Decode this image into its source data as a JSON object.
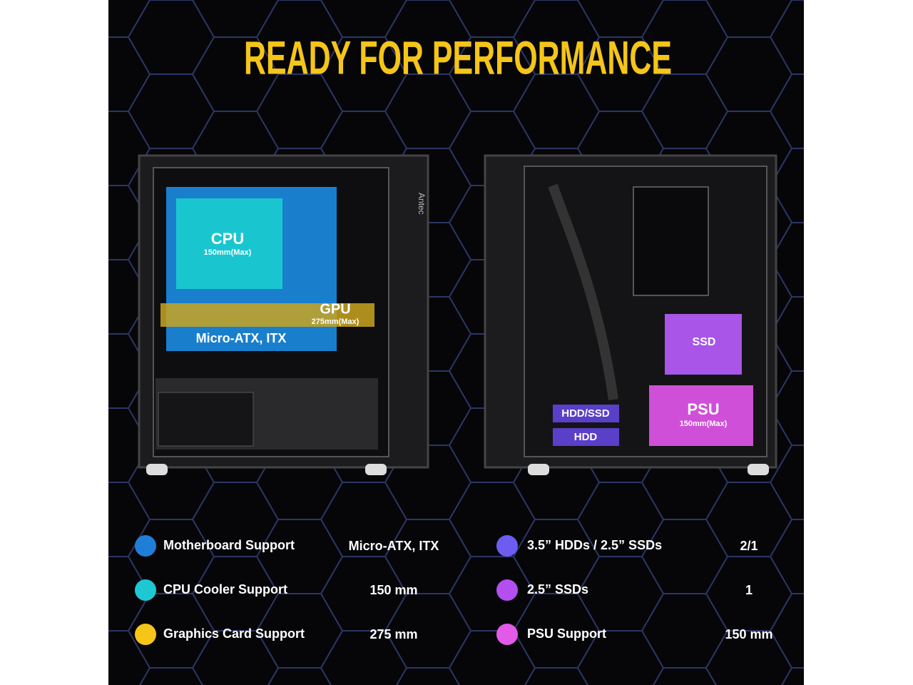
{
  "title": "READY FOR PERFORMANCE",
  "front_view": {
    "brand": "Antec",
    "cpu": {
      "label": "CPU",
      "note": "150mm(Max)"
    },
    "gpu": {
      "label": "GPU",
      "note": "275mm(Max)"
    },
    "motherboard": "Micro-ATX, ITX"
  },
  "rear_view": {
    "ssd": "SSD",
    "hdd_ssd": "HDD/SSD",
    "hdd": "HDD",
    "psu": {
      "label": "PSU",
      "note": "150mm(Max)"
    }
  },
  "specs": [
    {
      "label": "Motherboard Support",
      "value": "Micro-ATX, ITX",
      "color": "#1f7fd8"
    },
    {
      "label": "CPU Cooler Support",
      "value": "150 mm",
      "color": "#1ec8d2"
    },
    {
      "label": "Graphics Card Support",
      "value": "275 mm",
      "color": "#f5c518"
    },
    {
      "label": "3.5” HDDs / 2.5” SSDs",
      "value": "2/1",
      "color": "#6d5cf0"
    },
    {
      "label": "2.5” SSDs",
      "value": "1",
      "color": "#b44ef0"
    },
    {
      "label": "PSU Support",
      "value": "150 mm",
      "color": "#e35ae8"
    }
  ]
}
